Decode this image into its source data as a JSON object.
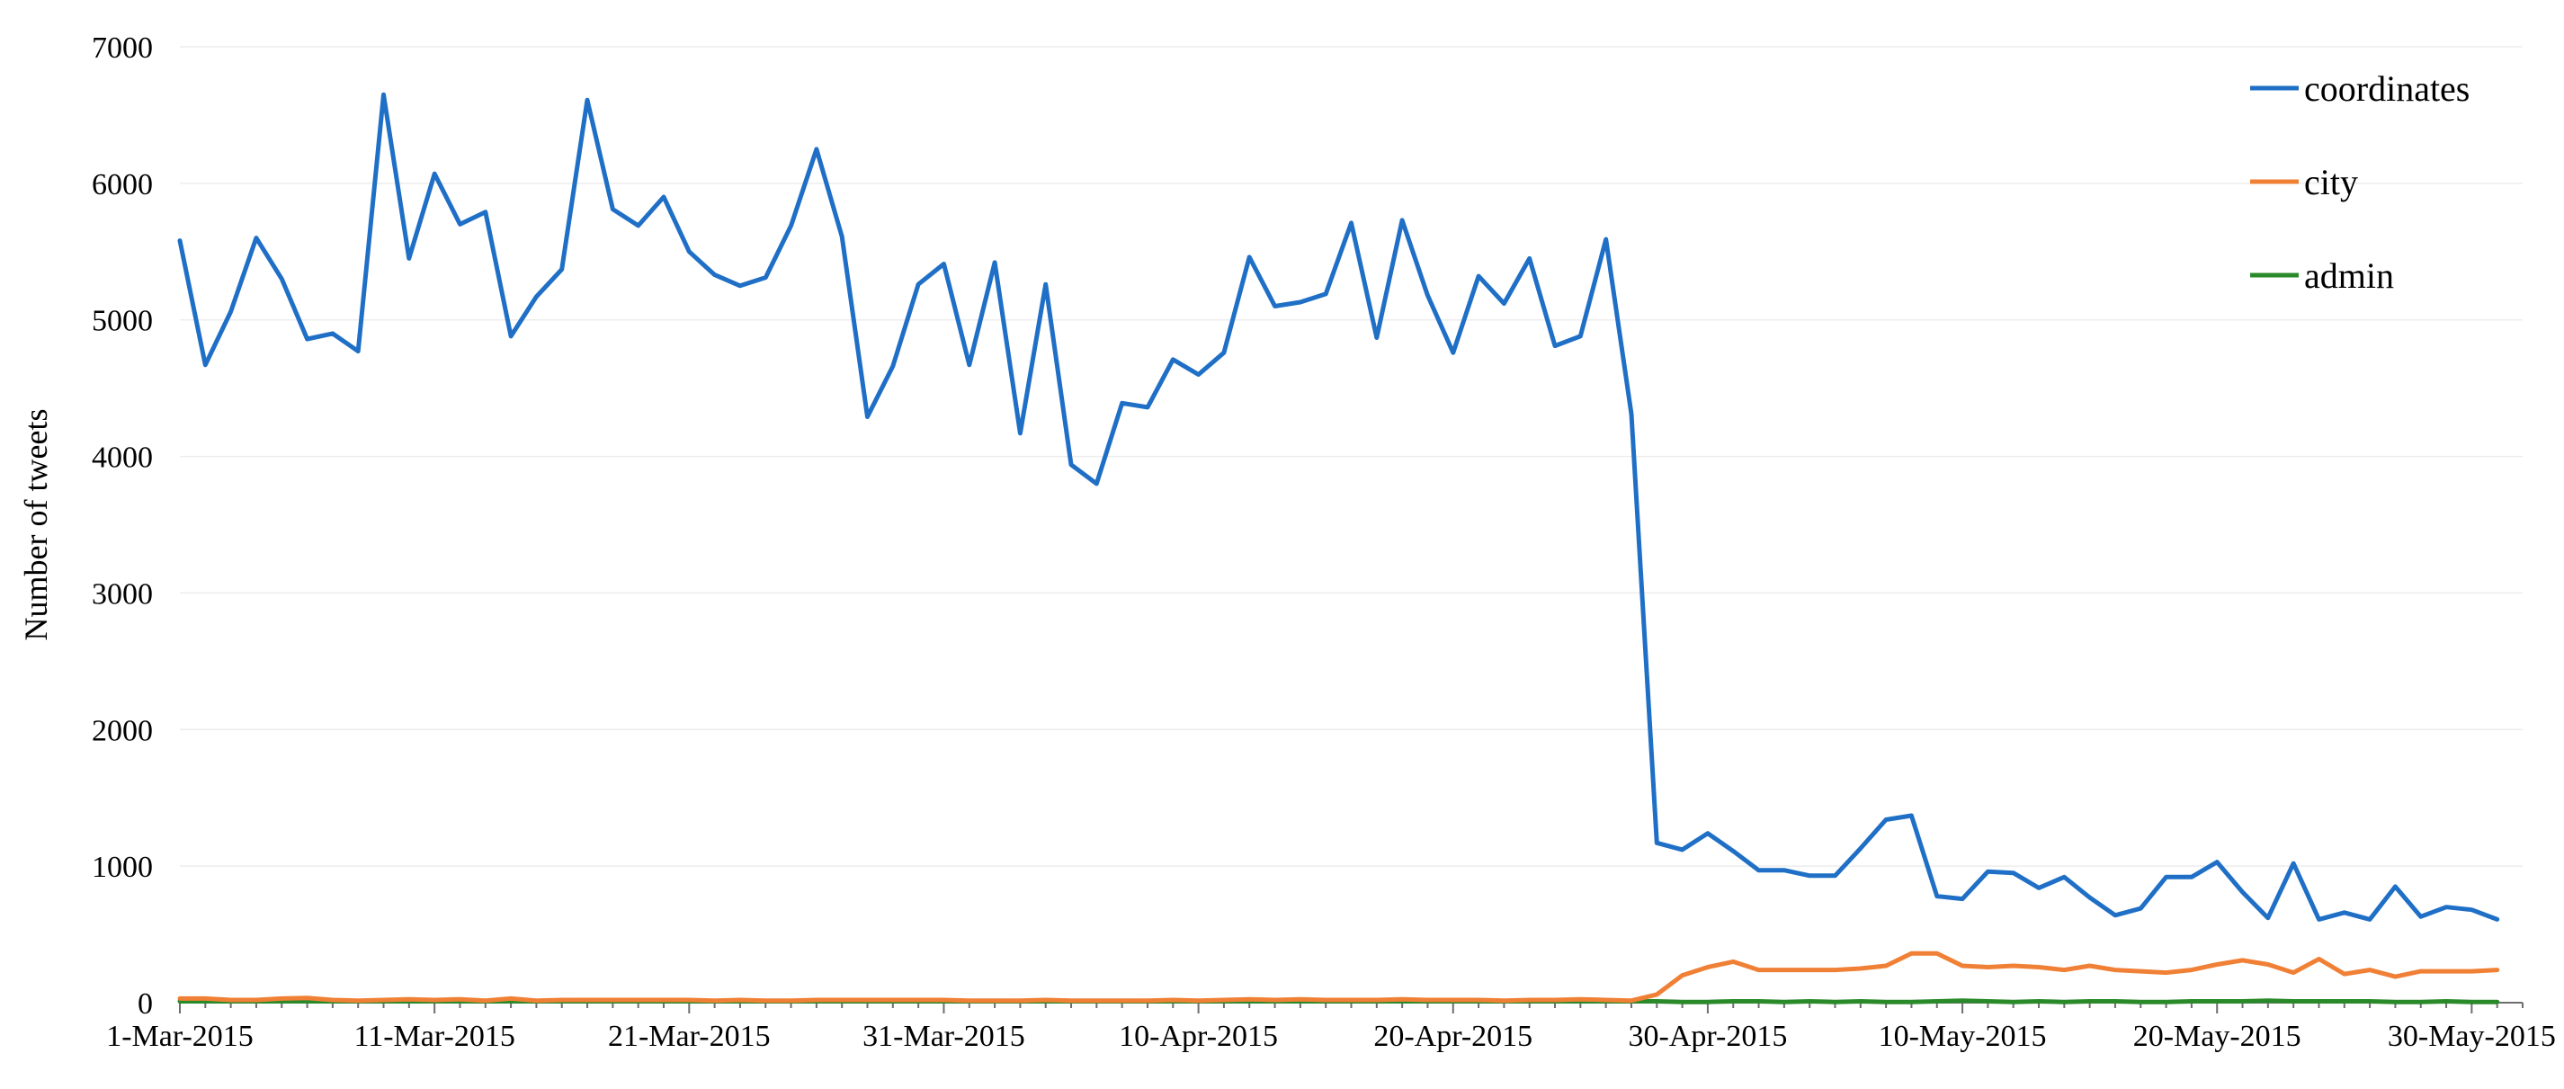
{
  "chart_data": {
    "type": "line",
    "title": "",
    "xlabel": "",
    "ylabel": "Number of tweets",
    "ylim": [
      0,
      7000
    ],
    "yticks": [
      0,
      1000,
      2000,
      3000,
      4000,
      5000,
      6000,
      7000
    ],
    "xlim": [
      "1-Mar-2015",
      "1-Jun-2015"
    ],
    "xticks": [
      "1-Mar-2015",
      "11-Mar-2015",
      "21-Mar-2015",
      "31-Mar-2015",
      "10-Apr-2015",
      "20-Apr-2015",
      "30-Apr-2015",
      "10-May-2015",
      "20-May-2015",
      "30-May-2015"
    ],
    "grid": "horizontal",
    "legend_position": "top-right",
    "x": [
      "1-Mar-2015",
      "2-Mar-2015",
      "3-Mar-2015",
      "4-Mar-2015",
      "5-Mar-2015",
      "6-Mar-2015",
      "7-Mar-2015",
      "8-Mar-2015",
      "9-Mar-2015",
      "10-Mar-2015",
      "11-Mar-2015",
      "12-Mar-2015",
      "13-Mar-2015",
      "14-Mar-2015",
      "15-Mar-2015",
      "16-Mar-2015",
      "17-Mar-2015",
      "18-Mar-2015",
      "19-Mar-2015",
      "20-Mar-2015",
      "21-Mar-2015",
      "22-Mar-2015",
      "23-Mar-2015",
      "24-Mar-2015",
      "25-Mar-2015",
      "26-Mar-2015",
      "27-Mar-2015",
      "28-Mar-2015",
      "29-Mar-2015",
      "30-Mar-2015",
      "31-Mar-2015",
      "1-Apr-2015",
      "2-Apr-2015",
      "3-Apr-2015",
      "4-Apr-2015",
      "5-Apr-2015",
      "6-Apr-2015",
      "7-Apr-2015",
      "8-Apr-2015",
      "9-Apr-2015",
      "10-Apr-2015",
      "11-Apr-2015",
      "12-Apr-2015",
      "13-Apr-2015",
      "14-Apr-2015",
      "15-Apr-2015",
      "16-Apr-2015",
      "17-Apr-2015",
      "18-Apr-2015",
      "19-Apr-2015",
      "20-Apr-2015",
      "21-Apr-2015",
      "22-Apr-2015",
      "23-Apr-2015",
      "24-Apr-2015",
      "25-Apr-2015",
      "26-Apr-2015",
      "27-Apr-2015",
      "28-Apr-2015",
      "29-Apr-2015",
      "30-Apr-2015",
      "1-May-2015",
      "2-May-2015",
      "3-May-2015",
      "4-May-2015",
      "5-May-2015",
      "6-May-2015",
      "7-May-2015",
      "8-May-2015",
      "9-May-2015",
      "10-May-2015",
      "11-May-2015",
      "12-May-2015",
      "13-May-2015",
      "14-May-2015",
      "15-May-2015",
      "16-May-2015",
      "17-May-2015",
      "18-May-2015",
      "19-May-2015",
      "20-May-2015",
      "21-May-2015",
      "22-May-2015",
      "23-May-2015",
      "24-May-2015",
      "25-May-2015",
      "26-May-2015",
      "27-May-2015",
      "28-May-2015",
      "29-May-2015",
      "30-May-2015",
      "31-May-2015"
    ],
    "series": [
      {
        "name": "coordinates",
        "color": "#1f6fc6",
        "values": [
          5580,
          4670,
          5060,
          5600,
          5300,
          4860,
          4900,
          4770,
          6650,
          5450,
          6070,
          5700,
          5790,
          4880,
          5170,
          5370,
          6610,
          5810,
          5690,
          5900,
          5500,
          5330,
          5250,
          5310,
          5690,
          6250,
          5610,
          4290,
          4660,
          5260,
          5410,
          4670,
          5420,
          4170,
          5260,
          3940,
          3800,
          4390,
          4360,
          4710,
          4600,
          4760,
          5460,
          5100,
          5130,
          5190,
          5710,
          4870,
          5730,
          5180,
          4760,
          5320,
          5120,
          5450,
          4810,
          4880,
          5590,
          4310,
          1170,
          1120,
          1240,
          1110,
          970,
          970,
          930,
          930,
          1130,
          1340,
          1370,
          780,
          760,
          960,
          950,
          840,
          920,
          770,
          640,
          690,
          920,
          920,
          1030,
          810,
          620,
          1020,
          610,
          660,
          610,
          850,
          630,
          700,
          680,
          610
        ]
      },
      {
        "name": "city",
        "color": "#f08035",
        "values": [
          30,
          30,
          20,
          20,
          30,
          35,
          20,
          15,
          20,
          25,
          20,
          25,
          15,
          30,
          15,
          20,
          20,
          20,
          20,
          20,
          20,
          15,
          20,
          15,
          15,
          20,
          20,
          20,
          20,
          20,
          20,
          15,
          15,
          15,
          20,
          15,
          15,
          15,
          15,
          20,
          15,
          20,
          25,
          20,
          25,
          20,
          20,
          20,
          25,
          20,
          20,
          20,
          15,
          20,
          20,
          25,
          20,
          15,
          60,
          200,
          260,
          300,
          240,
          240,
          240,
          240,
          250,
          270,
          360,
          360,
          270,
          260,
          270,
          260,
          240,
          270,
          240,
          230,
          220,
          240,
          280,
          310,
          280,
          220,
          320,
          210,
          240,
          190,
          230,
          230,
          230,
          240
        ]
      },
      {
        "name": "admin",
        "color": "#2a8a2a",
        "values": [
          10,
          10,
          10,
          10,
          10,
          10,
          10,
          10,
          10,
          10,
          10,
          10,
          10,
          10,
          10,
          10,
          10,
          10,
          10,
          10,
          10,
          10,
          10,
          10,
          10,
          10,
          10,
          10,
          10,
          10,
          10,
          10,
          10,
          10,
          10,
          10,
          10,
          10,
          10,
          10,
          10,
          10,
          10,
          10,
          10,
          10,
          10,
          10,
          10,
          10,
          10,
          10,
          10,
          10,
          10,
          10,
          10,
          10,
          10,
          5,
          5,
          10,
          10,
          5,
          10,
          5,
          10,
          5,
          5,
          10,
          15,
          10,
          5,
          10,
          5,
          10,
          10,
          5,
          5,
          10,
          10,
          10,
          15,
          10,
          10,
          10,
          10,
          5,
          5,
          10,
          5,
          5
        ]
      }
    ]
  }
}
